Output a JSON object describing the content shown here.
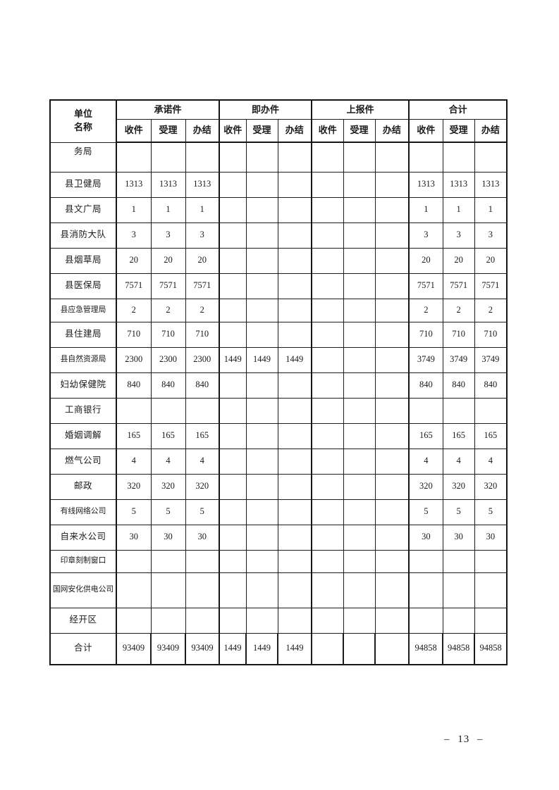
{
  "page": {
    "number_label": "– 13 –"
  },
  "table": {
    "unit_header": {
      "line1": "单位",
      "line2": "名称"
    },
    "groups": [
      "承诺件",
      "即办件",
      "上报件",
      "合计"
    ],
    "sub_columns": [
      "收件",
      "受理",
      "办结"
    ],
    "rows": [
      {
        "name": "务局",
        "values": [
          "",
          "",
          "",
          "",
          "",
          "",
          "",
          "",
          "",
          "",
          "",
          ""
        ]
      },
      {
        "name": "县卫健局",
        "values": [
          "1313",
          "1313",
          "1313",
          "",
          "",
          "",
          "",
          "",
          "",
          "1313",
          "1313",
          "1313"
        ]
      },
      {
        "name": "县文广局",
        "values": [
          "1",
          "1",
          "1",
          "",
          "",
          "",
          "",
          "",
          "",
          "1",
          "1",
          "1"
        ]
      },
      {
        "name": "县消防大队",
        "values": [
          "3",
          "3",
          "3",
          "",
          "",
          "",
          "",
          "",
          "",
          "3",
          "3",
          "3"
        ]
      },
      {
        "name": "县烟草局",
        "values": [
          "20",
          "20",
          "20",
          "",
          "",
          "",
          "",
          "",
          "",
          "20",
          "20",
          "20"
        ]
      },
      {
        "name": "县医保局",
        "values": [
          "7571",
          "7571",
          "7571",
          "",
          "",
          "",
          "",
          "",
          "",
          "7571",
          "7571",
          "7571"
        ]
      },
      {
        "name": "县应急管理局",
        "values": [
          "2",
          "2",
          "2",
          "",
          "",
          "",
          "",
          "",
          "",
          "2",
          "2",
          "2"
        ]
      },
      {
        "name": "县住建局",
        "values": [
          "710",
          "710",
          "710",
          "",
          "",
          "",
          "",
          "",
          "",
          "710",
          "710",
          "710"
        ]
      },
      {
        "name": "县自然资源局",
        "values": [
          "2300",
          "2300",
          "2300",
          "1449",
          "1449",
          "1449",
          "",
          "",
          "",
          "3749",
          "3749",
          "3749"
        ]
      },
      {
        "name": "妇幼保健院",
        "values": [
          "840",
          "840",
          "840",
          "",
          "",
          "",
          "",
          "",
          "",
          "840",
          "840",
          "840"
        ]
      },
      {
        "name": "工商银行",
        "values": [
          "",
          "",
          "",
          "",
          "",
          "",
          "",
          "",
          "",
          "",
          "",
          ""
        ]
      },
      {
        "name": "婚姻调解",
        "values": [
          "165",
          "165",
          "165",
          "",
          "",
          "",
          "",
          "",
          "",
          "165",
          "165",
          "165"
        ]
      },
      {
        "name": "燃气公司",
        "values": [
          "4",
          "4",
          "4",
          "",
          "",
          "",
          "",
          "",
          "",
          "4",
          "4",
          "4"
        ]
      },
      {
        "name": "邮政",
        "values": [
          "320",
          "320",
          "320",
          "",
          "",
          "",
          "",
          "",
          "",
          "320",
          "320",
          "320"
        ]
      },
      {
        "name": "有线网络公司",
        "values": [
          "5",
          "5",
          "5",
          "",
          "",
          "",
          "",
          "",
          "",
          "5",
          "5",
          "5"
        ]
      },
      {
        "name": "自来水公司",
        "values": [
          "30",
          "30",
          "30",
          "",
          "",
          "",
          "",
          "",
          "",
          "30",
          "30",
          "30"
        ]
      },
      {
        "name": "印章刻制窗口",
        "values": [
          "",
          "",
          "",
          "",
          "",
          "",
          "",
          "",
          "",
          "",
          "",
          ""
        ]
      },
      {
        "name": "国网安化供电公司",
        "values": [
          "",
          "",
          "",
          "",
          "",
          "",
          "",
          "",
          "",
          "",
          "",
          ""
        ]
      },
      {
        "name": "经开区",
        "values": [
          "",
          "",
          "",
          "",
          "",
          "",
          "",
          "",
          "",
          "",
          "",
          ""
        ]
      },
      {
        "name": "合计",
        "values": [
          "93409",
          "93409",
          "93409",
          "1449",
          "1449",
          "1449",
          "",
          "",
          "",
          "94858",
          "94858",
          "94858"
        ]
      }
    ]
  }
}
